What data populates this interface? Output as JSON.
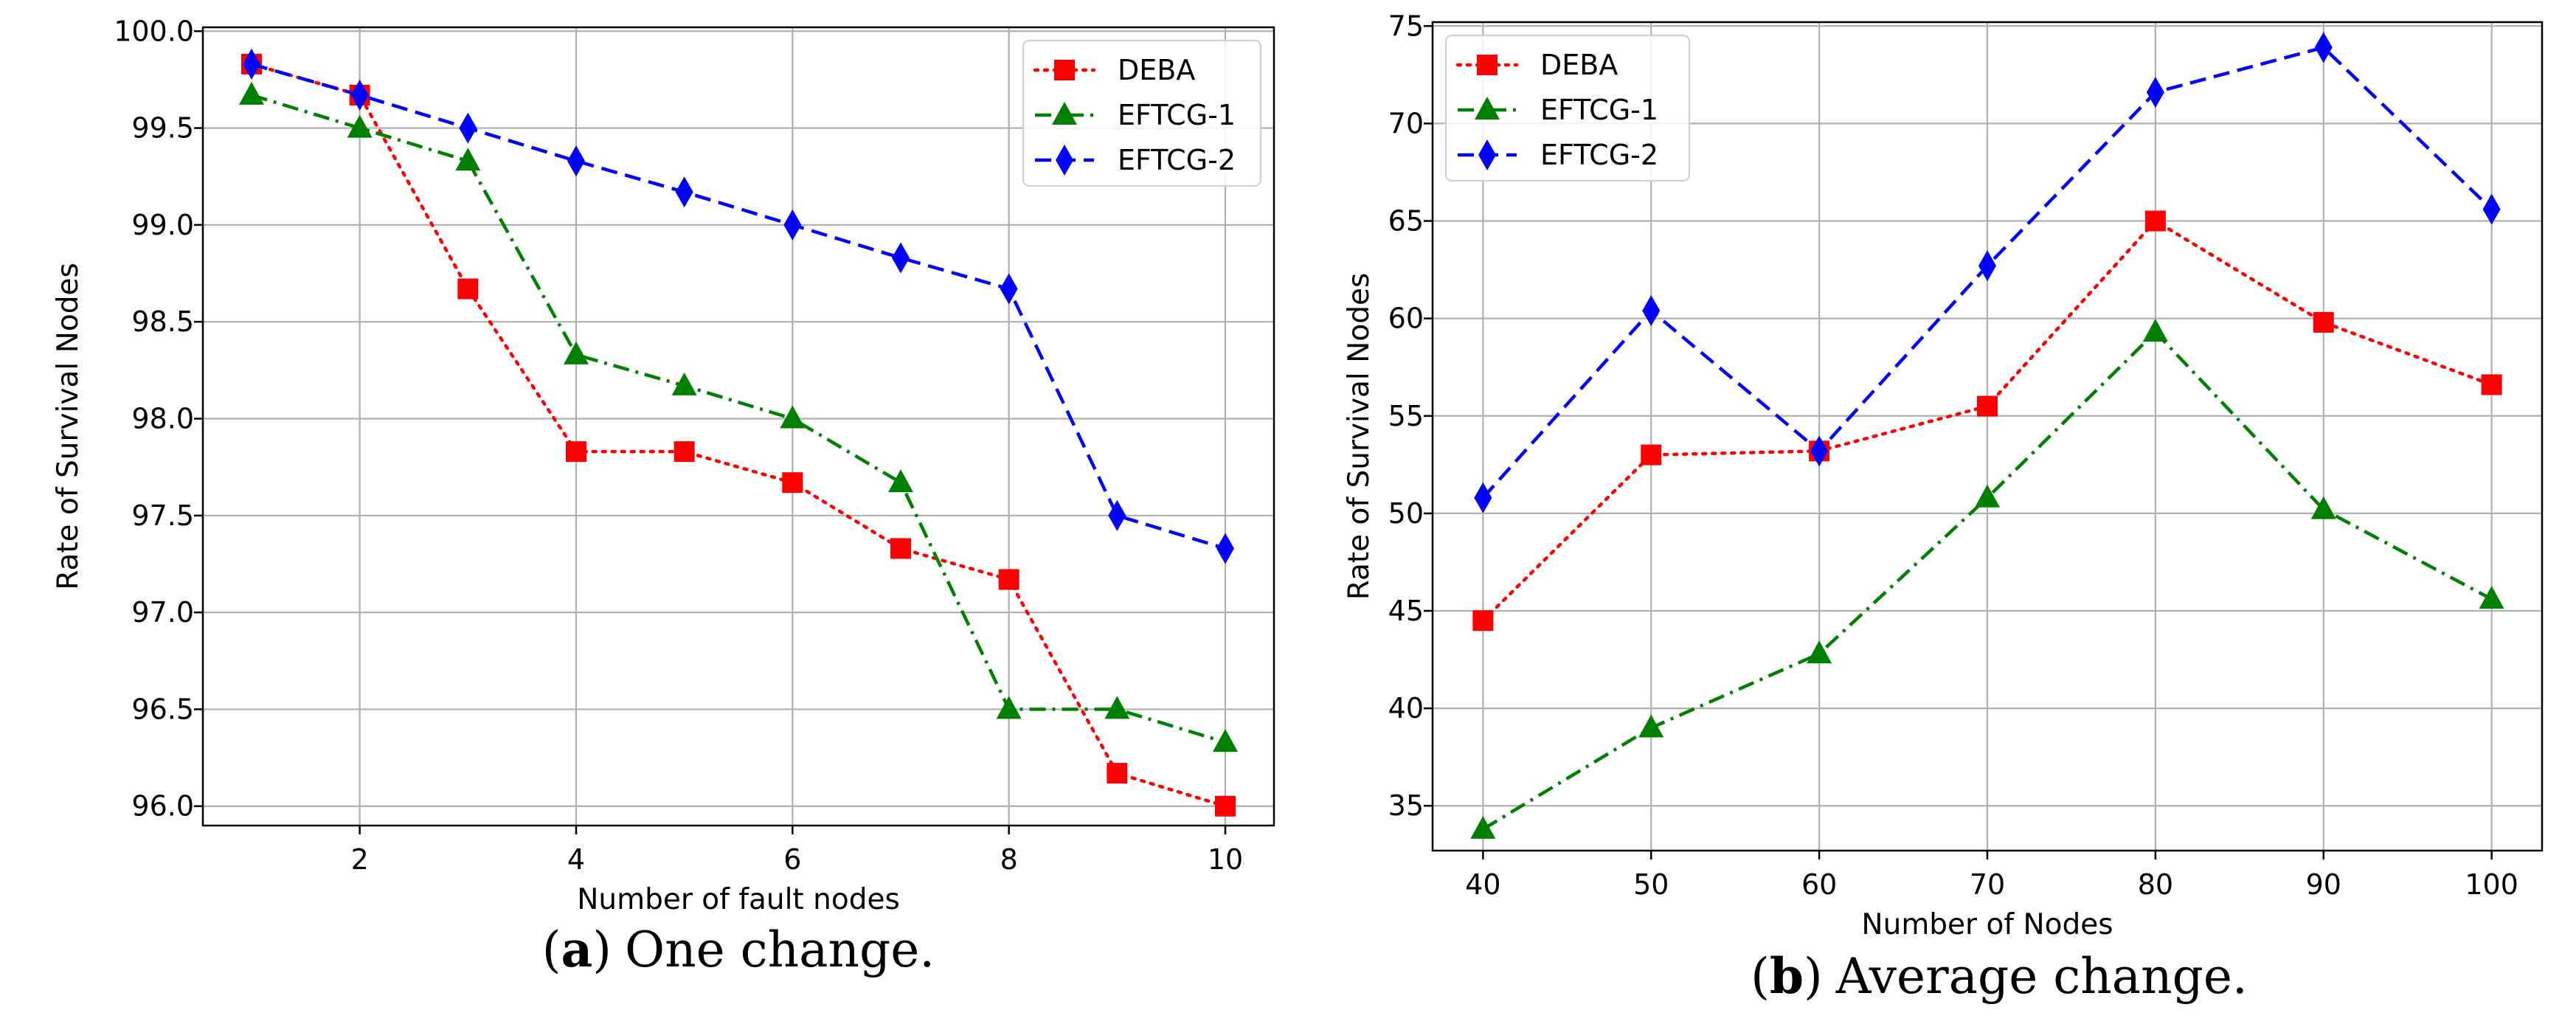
{
  "colors": {
    "DEBA": "#ff0000",
    "EFTCG-1": "#008000",
    "EFTCG-2": "#0000ff",
    "grid": "#b0b0b0"
  },
  "chart_data": [
    {
      "id": "a",
      "type": "line",
      "xlabel": "Number of fault nodes",
      "ylabel": "Rate of Survival Nodes",
      "xlim": [
        0.55,
        10.45
      ],
      "ylim": [
        95.9,
        100.02
      ],
      "xticks": [
        2,
        4,
        6,
        8,
        10
      ],
      "xtick_labels": [
        "2",
        "4",
        "6",
        "8",
        "10"
      ],
      "yticks": [
        96.0,
        96.5,
        97.0,
        97.5,
        98.0,
        98.5,
        99.0,
        99.5,
        100.0
      ],
      "ytick_labels": [
        "96.0",
        "96.5",
        "97.0",
        "97.5",
        "98.0",
        "98.5",
        "99.0",
        "99.5",
        "100.0"
      ],
      "grid": true,
      "legend_position": "upper right",
      "x": [
        1,
        2,
        3,
        4,
        5,
        6,
        7,
        8,
        9,
        10
      ],
      "series": [
        {
          "name": "DEBA",
          "style": "dotted",
          "marker": "square",
          "values": [
            99.83,
            99.67,
            98.67,
            97.83,
            97.83,
            97.67,
            97.33,
            97.17,
            96.17,
            96.0
          ]
        },
        {
          "name": "EFTCG-1",
          "style": "dashdot",
          "marker": "triangle",
          "values": [
            99.67,
            99.5,
            99.33,
            98.33,
            98.17,
            98.0,
            97.67,
            96.5,
            96.5,
            96.33
          ]
        },
        {
          "name": "EFTCG-2",
          "style": "dashed",
          "marker": "diamond",
          "values": [
            99.83,
            99.67,
            99.5,
            99.33,
            99.17,
            99.0,
            98.83,
            98.67,
            97.5,
            97.33
          ]
        }
      ],
      "caption": {
        "letter": "a",
        "text": "One change."
      }
    },
    {
      "id": "b",
      "type": "line",
      "xlabel": "Number of Nodes",
      "ylabel": "Rate of Survival Nodes",
      "xlim": [
        37,
        103
      ],
      "ylim": [
        32.7,
        75.2
      ],
      "xticks": [
        40,
        50,
        60,
        70,
        80,
        90,
        100
      ],
      "xtick_labels": [
        "40",
        "50",
        "60",
        "70",
        "80",
        "90",
        "100"
      ],
      "yticks": [
        35,
        40,
        45,
        50,
        55,
        60,
        65,
        70,
        75
      ],
      "ytick_labels": [
        "35",
        "40",
        "45",
        "50",
        "55",
        "60",
        "65",
        "70",
        "75"
      ],
      "grid": true,
      "legend_position": "upper left",
      "x": [
        40,
        50,
        60,
        70,
        80,
        90,
        100
      ],
      "series": [
        {
          "name": "DEBA",
          "style": "dotted",
          "marker": "square",
          "values": [
            44.5,
            53.0,
            53.2,
            55.5,
            65.0,
            59.8,
            56.6
          ]
        },
        {
          "name": "EFTCG-1",
          "style": "dashdot",
          "marker": "triangle",
          "values": [
            33.8,
            39.0,
            42.8,
            50.8,
            59.3,
            50.2,
            45.6
          ]
        },
        {
          "name": "EFTCG-2",
          "style": "dashed",
          "marker": "diamond",
          "values": [
            50.8,
            60.4,
            53.2,
            62.7,
            71.6,
            73.9,
            65.6
          ]
        }
      ],
      "caption": {
        "letter": "b",
        "text": "Average change."
      }
    }
  ]
}
